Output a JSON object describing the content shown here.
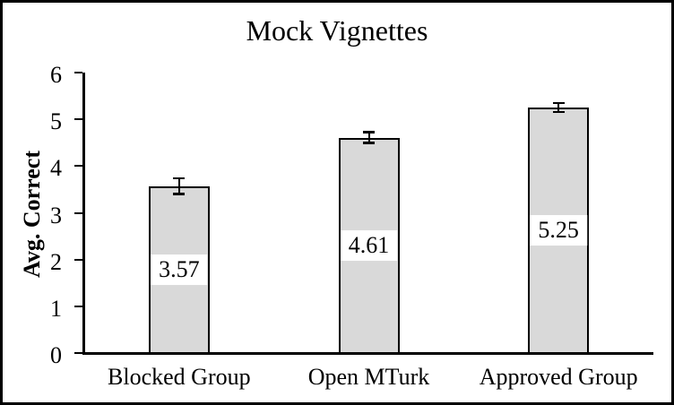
{
  "chart_data": {
    "type": "bar",
    "title": "Mock Vignettes",
    "xlabel": "",
    "ylabel": "Avg. Correct",
    "ylim": [
      0,
      6
    ],
    "yticks": [
      0,
      1,
      2,
      3,
      4,
      5,
      6
    ],
    "categories": [
      "Blocked Group",
      "Open MTurk",
      "Approved Group"
    ],
    "values": [
      3.57,
      4.61,
      5.25
    ],
    "data_labels": [
      "3.57",
      "4.61",
      "5.25"
    ],
    "error_bars": [
      0.15,
      0.1,
      0.08
    ],
    "grid": false,
    "legend_position": "none",
    "colors": {
      "bar_fill": "#d9d9d9",
      "bar_border": "#000000",
      "axis": "#000000",
      "text": "#000000",
      "label_box_fill": "#ffffff",
      "background": "#ffffff",
      "frame_border": "#000000"
    }
  }
}
